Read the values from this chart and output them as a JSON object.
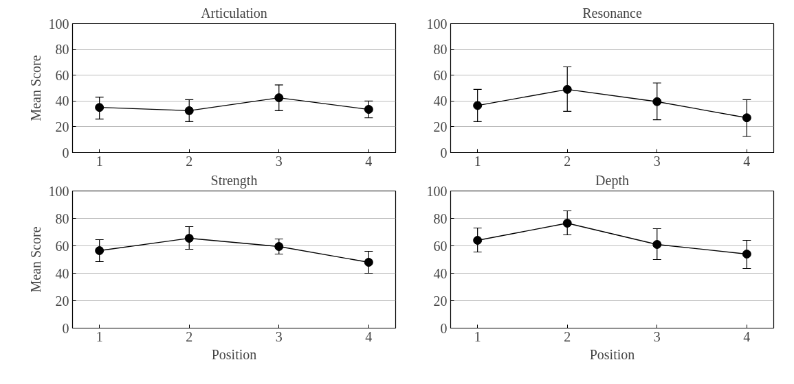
{
  "chart_data": [
    {
      "type": "line",
      "title": "Articulation",
      "ylabel": "Mean Score",
      "x": [
        1,
        2,
        3,
        4
      ],
      "values": [
        35,
        32.5,
        42.5,
        33.5
      ],
      "errors": [
        [
          26,
          43
        ],
        [
          24,
          41
        ],
        [
          32.5,
          52.5
        ],
        [
          27,
          40
        ]
      ],
      "color": "#000000",
      "marker": "circle",
      "line_style": "solid",
      "xlim": [
        0.7,
        4.3
      ],
      "ylim": [
        0,
        100
      ],
      "xticks": [
        1,
        2,
        3,
        4
      ],
      "yticks": [
        0,
        20,
        40,
        60,
        80,
        100
      ],
      "grid": "y"
    },
    {
      "type": "line",
      "title": "Resonance",
      "x": [
        1,
        2,
        3,
        4
      ],
      "values": [
        36.5,
        49,
        39.5,
        27
      ],
      "errors": [
        [
          24,
          49
        ],
        [
          32,
          66.5
        ],
        [
          25.5,
          54
        ],
        [
          12.5,
          41
        ]
      ],
      "color": "#000000",
      "marker": "circle",
      "line_style": "solid",
      "xlim": [
        0.7,
        4.3
      ],
      "ylim": [
        0,
        100
      ],
      "xticks": [
        1,
        2,
        3,
        4
      ],
      "yticks": [
        0,
        20,
        40,
        60,
        80,
        100
      ],
      "grid": "y"
    },
    {
      "type": "line",
      "title": "Strength",
      "xlabel": "Position",
      "ylabel": "Mean Score",
      "x": [
        1,
        2,
        3,
        4
      ],
      "values": [
        56.5,
        65.5,
        59.5,
        48
      ],
      "errors": [
        [
          48.5,
          64.5
        ],
        [
          57.5,
          74
        ],
        [
          54,
          65
        ],
        [
          40,
          56
        ]
      ],
      "color": "#000000",
      "marker": "circle",
      "line_style": "solid",
      "xlim": [
        0.7,
        4.3
      ],
      "ylim": [
        0,
        100
      ],
      "xticks": [
        1,
        2,
        3,
        4
      ],
      "yticks": [
        0,
        20,
        40,
        60,
        80,
        100
      ],
      "grid": "y"
    },
    {
      "type": "line",
      "title": "Depth",
      "xlabel": "Position",
      "x": [
        1,
        2,
        3,
        4
      ],
      "values": [
        64,
        76.5,
        61,
        54
      ],
      "errors": [
        [
          55.5,
          73
        ],
        [
          68,
          85.5
        ],
        [
          50,
          72.5
        ],
        [
          43.5,
          64
        ]
      ],
      "color": "#000000",
      "marker": "circle",
      "line_style": "solid",
      "xlim": [
        0.7,
        4.3
      ],
      "ylim": [
        0,
        100
      ],
      "xticks": [
        1,
        2,
        3,
        4
      ],
      "yticks": [
        0,
        20,
        40,
        60,
        80,
        100
      ],
      "grid": "y"
    }
  ]
}
